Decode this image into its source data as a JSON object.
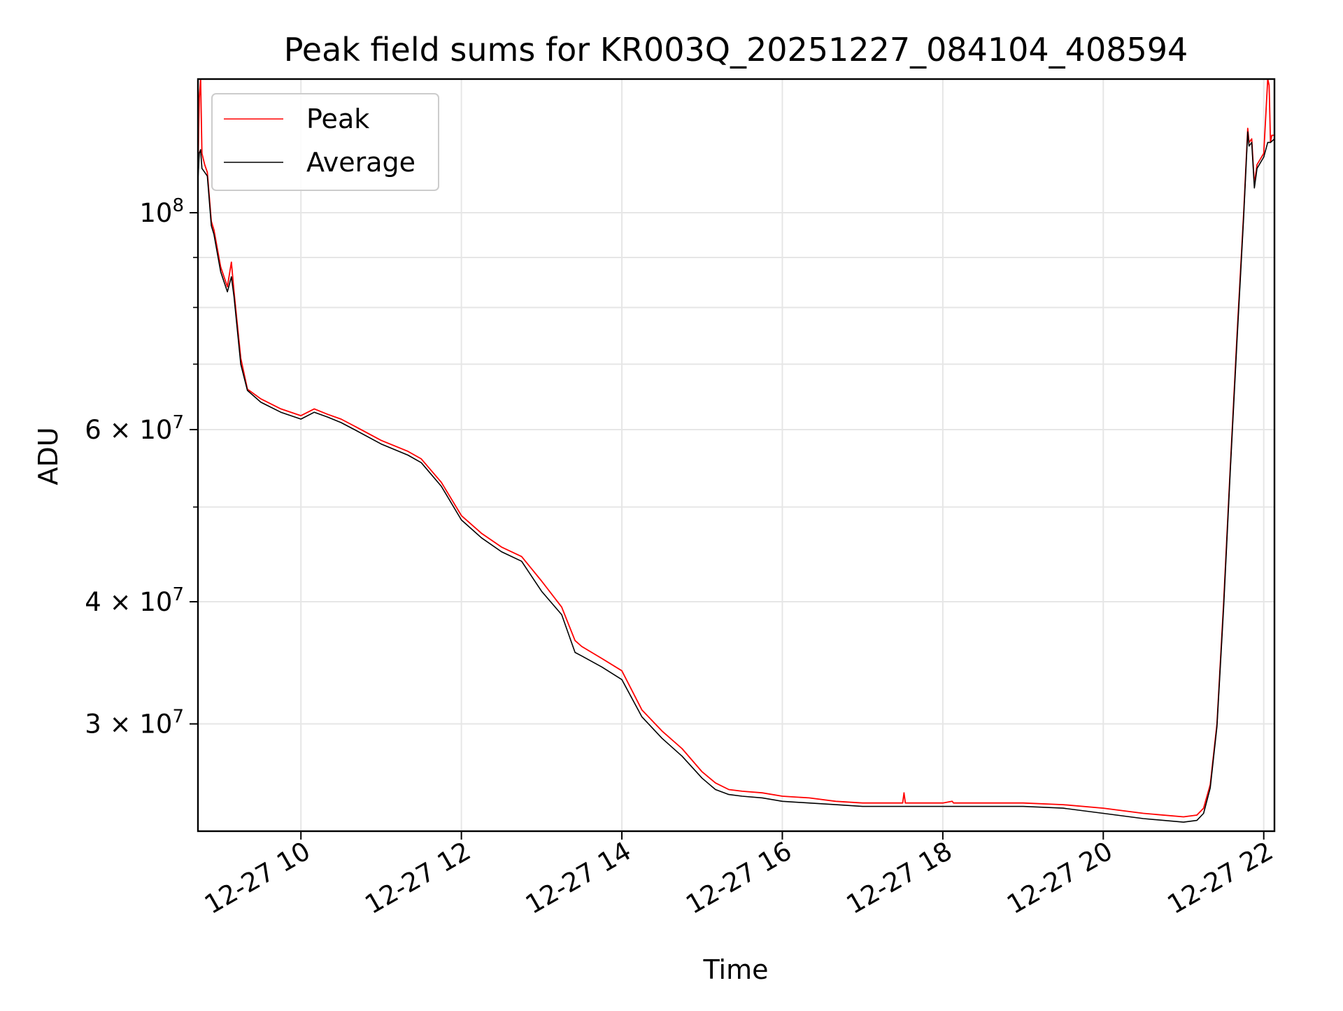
{
  "chart_data": {
    "type": "line",
    "title": "Peak field sums for KR003Q_20251227_084104_408594",
    "xlabel": "Time",
    "ylabel": "ADU",
    "yscale": "log",
    "xlim": [
      "12-27 08:43",
      "12-27 22:08"
    ],
    "ylim": [
      23300000,
      137000000
    ],
    "grid": true,
    "legend_position": "upper-left",
    "xticks": [
      {
        "t": "12-27 10:00",
        "label": "12-27 10"
      },
      {
        "t": "12-27 12:00",
        "label": "12-27 12"
      },
      {
        "t": "12-27 14:00",
        "label": "12-27 14"
      },
      {
        "t": "12-27 16:00",
        "label": "12-27 16"
      },
      {
        "t": "12-27 18:00",
        "label": "12-27 18"
      },
      {
        "t": "12-27 20:00",
        "label": "12-27 20"
      },
      {
        "t": "12-27 22:00",
        "label": "12-27 22"
      }
    ],
    "yticks_major": [
      {
        "v": 100000000,
        "base": "10",
        "exp": "8",
        "mant": ""
      },
      {
        "v": 60000000,
        "base": "10",
        "exp": "7",
        "mant": "6"
      },
      {
        "v": 40000000,
        "base": "10",
        "exp": "7",
        "mant": "4"
      },
      {
        "v": 30000000,
        "base": "10",
        "exp": "7",
        "mant": "3"
      }
    ],
    "yticks_minor": [
      90000000,
      80000000,
      70000000,
      50000000
    ],
    "series": [
      {
        "name": "Peak",
        "color": "#ff0000",
        "x": [
          "12-27 08:43",
          "12-27 08:44",
          "12-27 08:45",
          "12-27 08:46",
          "12-27 08:48",
          "12-27 08:50",
          "12-27 08:53",
          "12-27 08:55",
          "12-27 09:00",
          "12-27 09:05",
          "12-27 09:08",
          "12-27 09:10",
          "12-27 09:12",
          "12-27 09:15",
          "12-27 09:20",
          "12-27 09:30",
          "12-27 09:45",
          "12-27 10:00",
          "12-27 10:10",
          "12-27 10:20",
          "12-27 10:30",
          "12-27 10:40",
          "12-27 11:00",
          "12-27 11:20",
          "12-27 11:30",
          "12-27 11:45",
          "12-27 12:00",
          "12-27 12:15",
          "12-27 12:30",
          "12-27 12:45",
          "12-27 13:00",
          "12-27 13:15",
          "12-27 13:25",
          "12-27 13:30",
          "12-27 13:45",
          "12-27 14:00",
          "12-27 14:15",
          "12-27 14:30",
          "12-27 14:45",
          "12-27 15:00",
          "12-27 15:10",
          "12-27 15:20",
          "12-27 15:30",
          "12-27 15:45",
          "12-27 16:00",
          "12-27 16:20",
          "12-27 16:40",
          "12-27 17:00",
          "12-27 17:30",
          "12-27 17:31",
          "12-27 17:32",
          "12-27 18:00",
          "12-27 18:07",
          "12-27 18:08",
          "12-27 18:30",
          "12-27 19:00",
          "12-27 19:30",
          "12-27 20:00",
          "12-27 20:30",
          "12-27 21:00",
          "12-27 21:10",
          "12-27 21:15",
          "12-27 21:20",
          "12-27 21:25",
          "12-27 21:30",
          "12-27 21:35",
          "12-27 21:40",
          "12-27 21:45",
          "12-27 21:48",
          "12-27 21:49",
          "12-27 21:51",
          "12-27 21:53",
          "12-27 21:55",
          "12-27 22:00",
          "12-27 22:03",
          "12-27 22:04",
          "12-27 22:05",
          "12-27 22:06",
          "12-27 22:08"
        ],
        "y": [
          110000000,
          131000000,
          137000000,
          115000000,
          112000000,
          110000000,
          98000000,
          96000000,
          88000000,
          84000000,
          89000000,
          83000000,
          78000000,
          71000000,
          66000000,
          64500000,
          63000000,
          62000000,
          63000000,
          62200000,
          61500000,
          60500000,
          58500000,
          57000000,
          56000000,
          53000000,
          49000000,
          47000000,
          45500000,
          44500000,
          42000000,
          39500000,
          36500000,
          36000000,
          35000000,
          34000000,
          31000000,
          29500000,
          28300000,
          26800000,
          26100000,
          25700000,
          25600000,
          25500000,
          25300000,
          25200000,
          25000000,
          24900000,
          24900000,
          25500000,
          24900000,
          24900000,
          25000000,
          24900000,
          24900000,
          24900000,
          24800000,
          24600000,
          24300000,
          24100000,
          24200000,
          24600000,
          26000000,
          30000000,
          40000000,
          55000000,
          75000000,
          100000000,
          122000000,
          118000000,
          119000000,
          107000000,
          112000000,
          115000000,
          137000000,
          135000000,
          118000000,
          120000000,
          120000000
        ]
      },
      {
        "name": "Average",
        "color": "#000000",
        "x": [
          "12-27 08:43",
          "12-27 08:44",
          "12-27 08:45",
          "12-27 08:46",
          "12-27 08:48",
          "12-27 08:50",
          "12-27 08:53",
          "12-27 08:55",
          "12-27 09:00",
          "12-27 09:05",
          "12-27 09:08",
          "12-27 09:10",
          "12-27 09:12",
          "12-27 09:15",
          "12-27 09:20",
          "12-27 09:30",
          "12-27 09:45",
          "12-27 10:00",
          "12-27 10:10",
          "12-27 10:20",
          "12-27 10:30",
          "12-27 10:40",
          "12-27 11:00",
          "12-27 11:20",
          "12-27 11:30",
          "12-27 11:45",
          "12-27 12:00",
          "12-27 12:15",
          "12-27 12:30",
          "12-27 12:45",
          "12-27 13:00",
          "12-27 13:15",
          "12-27 13:25",
          "12-27 13:30",
          "12-27 13:45",
          "12-27 14:00",
          "12-27 14:15",
          "12-27 14:30",
          "12-27 14:45",
          "12-27 15:00",
          "12-27 15:10",
          "12-27 15:20",
          "12-27 15:30",
          "12-27 15:45",
          "12-27 16:00",
          "12-27 16:20",
          "12-27 16:40",
          "12-27 17:00",
          "12-27 17:30",
          "12-27 18:00",
          "12-27 18:30",
          "12-27 19:00",
          "12-27 19:30",
          "12-27 20:00",
          "12-27 20:30",
          "12-27 21:00",
          "12-27 21:10",
          "12-27 21:15",
          "12-27 21:20",
          "12-27 21:25",
          "12-27 21:30",
          "12-27 21:35",
          "12-27 21:40",
          "12-27 21:45",
          "12-27 21:48",
          "12-27 21:49",
          "12-27 21:51",
          "12-27 21:53",
          "12-27 21:55",
          "12-27 22:00",
          "12-27 22:03",
          "12-27 22:05",
          "12-27 22:08"
        ],
        "y": [
          108000000,
          115000000,
          116000000,
          111000000,
          110000000,
          109000000,
          97000000,
          95000000,
          87000000,
          83000000,
          86000000,
          82000000,
          77000000,
          70000000,
          65800000,
          64000000,
          62500000,
          61500000,
          62500000,
          61800000,
          61000000,
          60000000,
          58000000,
          56500000,
          55500000,
          52500000,
          48500000,
          46500000,
          45000000,
          44000000,
          41000000,
          38800000,
          35500000,
          35200000,
          34300000,
          33300000,
          30500000,
          29000000,
          27800000,
          26400000,
          25700000,
          25400000,
          25300000,
          25200000,
          25000000,
          24900000,
          24800000,
          24700000,
          24700000,
          24700000,
          24700000,
          24700000,
          24600000,
          24300000,
          24000000,
          23800000,
          23900000,
          24300000,
          25800000,
          29800000,
          39500000,
          54500000,
          74000000,
          99000000,
          121000000,
          117000000,
          118000000,
          106000000,
          111000000,
          114000000,
          118000000,
          118000000,
          119000000
        ]
      }
    ]
  }
}
